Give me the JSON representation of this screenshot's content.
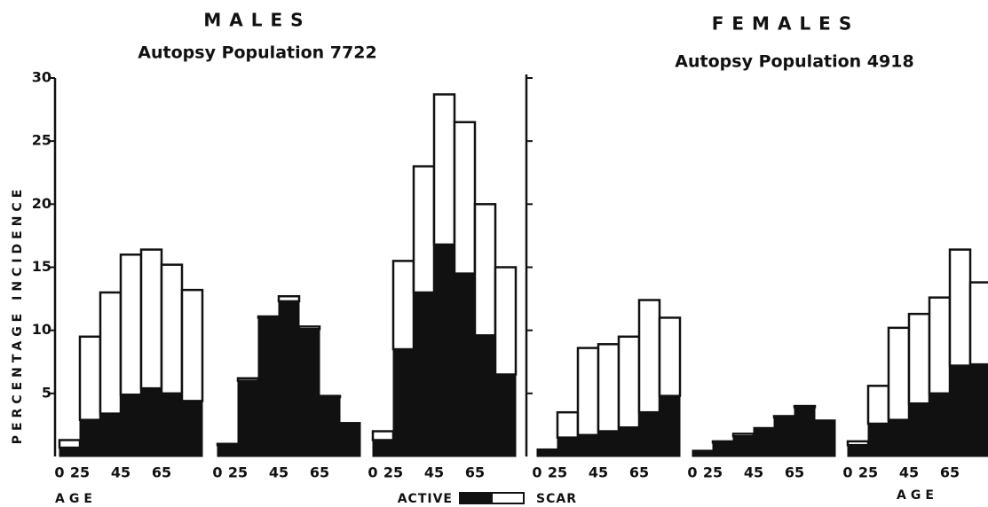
{
  "ylabel": "PERCENTAGE INCIDENCE",
  "ylim": [
    0,
    30
  ],
  "yticks": [
    5,
    10,
    15,
    20,
    25,
    30
  ],
  "legend": [
    {
      "name": "ACTIVE",
      "color": "#111111"
    },
    {
      "name": "SCAR",
      "color": "#ffffff"
    }
  ],
  "chart_data": [
    {
      "type": "histogram",
      "title": "MALES",
      "subtitle": "Autopsy Population 7722",
      "xlabel": "AGE",
      "bins": [
        0,
        25,
        35,
        45,
        55,
        65,
        75,
        85
      ],
      "xticks": [
        0,
        25,
        45,
        65
      ],
      "panels": [
        {
          "active": [
            0.7,
            2.9,
            3.4,
            4.9,
            5.4,
            5.0,
            4.4
          ],
          "scar": [
            0.6,
            6.6,
            9.6,
            11.1,
            11.0,
            10.2,
            8.8
          ]
        },
        {
          "active": [
            0.9,
            6.0,
            11.0,
            12.3,
            10.1,
            4.7,
            2.7
          ],
          "scar": [
            0.1,
            0.2,
            0.1,
            0.4,
            0.2,
            0.1,
            0.0
          ]
        },
        {
          "active": [
            1.3,
            8.5,
            13.0,
            16.8,
            14.5,
            9.6,
            6.5
          ],
          "scar": [
            0.7,
            7.0,
            10.0,
            11.9,
            12.0,
            10.4,
            8.5
          ]
        }
      ]
    },
    {
      "type": "histogram",
      "title": "FEMALES",
      "subtitle": "Autopsy Population 4918",
      "xlabel": "AGE",
      "bins": [
        0,
        25,
        35,
        45,
        55,
        65,
        75,
        85
      ],
      "xticks": [
        0,
        25,
        45,
        65
      ],
      "panels": [
        {
          "active": [
            0.6,
            1.5,
            1.7,
            2.0,
            2.3,
            3.5,
            4.8
          ],
          "scar": [
            0.0,
            2.0,
            6.9,
            6.9,
            7.2,
            8.9,
            6.2
          ]
        },
        {
          "active": [
            0.5,
            1.1,
            1.6,
            2.3,
            3.1,
            3.9,
            2.9
          ],
          "scar": [
            0.0,
            0.1,
            0.2,
            0.0,
            0.1,
            0.1,
            0.0
          ]
        },
        {
          "active": [
            0.9,
            2.6,
            2.9,
            4.2,
            5.0,
            7.2,
            7.3
          ],
          "scar": [
            0.3,
            3.0,
            7.3,
            7.1,
            7.6,
            9.2,
            6.5
          ]
        }
      ]
    }
  ]
}
